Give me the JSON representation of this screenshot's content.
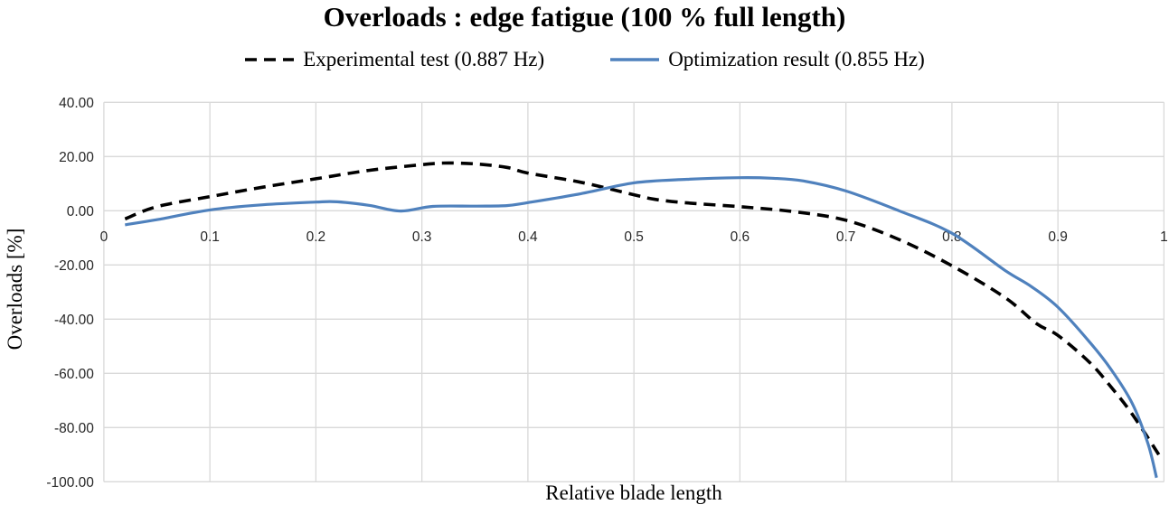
{
  "title": "Overloads : edge fatigue (100 % full length)",
  "legend": {
    "items": [
      {
        "label": "Experimental test (0.887 Hz)"
      },
      {
        "label": "Optimization result (0.855 Hz)"
      }
    ]
  },
  "axes": {
    "y_title": "Overloads [%]",
    "x_title": "Relative blade length"
  },
  "colors": {
    "experimental": "#000000",
    "optimization": "#4F81BD",
    "gridline": "#D9D9D9",
    "tick_text": "#262626"
  },
  "chart_data": {
    "type": "line",
    "title": "Overloads : edge fatigue (100 % full length)",
    "xlabel": "Relative blade length",
    "ylabel": "Overloads [%]",
    "xlim": [
      0,
      1
    ],
    "ylim": [
      -100,
      40
    ],
    "grid": true,
    "legend_position": "top",
    "x_ticks": [
      "0",
      "0.1",
      "0.2",
      "0.3",
      "0.4",
      "0.5",
      "0.6",
      "0.7",
      "0.8",
      "0.9",
      "1"
    ],
    "y_ticks": [
      "40.00",
      "20.00",
      "0.00",
      "-20.00",
      "-40.00",
      "-60.00",
      "-80.00",
      "-100.00"
    ],
    "series": [
      {
        "name": "Experimental test (0.887 Hz)",
        "color": "#000000",
        "dash": true,
        "x": [
          0.02,
          0.05,
          0.1,
          0.15,
          0.2,
          0.25,
          0.3,
          0.32,
          0.35,
          0.38,
          0.4,
          0.45,
          0.5,
          0.52,
          0.55,
          0.6,
          0.65,
          0.7,
          0.75,
          0.8,
          0.85,
          0.88,
          0.9,
          0.93,
          0.95,
          0.97,
          0.996
        ],
        "y": [
          -3.0,
          1.5,
          5.2,
          8.7,
          11.8,
          14.9,
          17.0,
          17.6,
          17.3,
          16.0,
          13.9,
          10.5,
          5.9,
          4.2,
          2.9,
          1.5,
          -0.3,
          -3.5,
          -10.6,
          -20.3,
          -32.0,
          -41.7,
          -46.0,
          -56.0,
          -65.0,
          -75.0,
          -90.5
        ]
      },
      {
        "name": "Optimization result (0.855 Hz)",
        "color": "#4F81BD",
        "dash": false,
        "x": [
          0.02,
          0.05,
          0.1,
          0.15,
          0.2,
          0.22,
          0.25,
          0.28,
          0.31,
          0.35,
          0.38,
          0.4,
          0.45,
          0.5,
          0.55,
          0.6,
          0.63,
          0.66,
          0.7,
          0.75,
          0.8,
          0.85,
          0.875,
          0.9,
          0.93,
          0.95,
          0.97,
          0.985,
          0.993
        ],
        "y": [
          -5.2,
          -3.3,
          0.3,
          2.2,
          3.2,
          3.3,
          2.0,
          -0.1,
          1.6,
          1.7,
          1.9,
          3.0,
          6.3,
          10.3,
          11.6,
          12.2,
          12.0,
          11.0,
          7.3,
          0.0,
          -8.3,
          -22.0,
          -28.0,
          -35.6,
          -48.5,
          -58.5,
          -71.0,
          -86.0,
          -98.5
        ]
      }
    ]
  }
}
